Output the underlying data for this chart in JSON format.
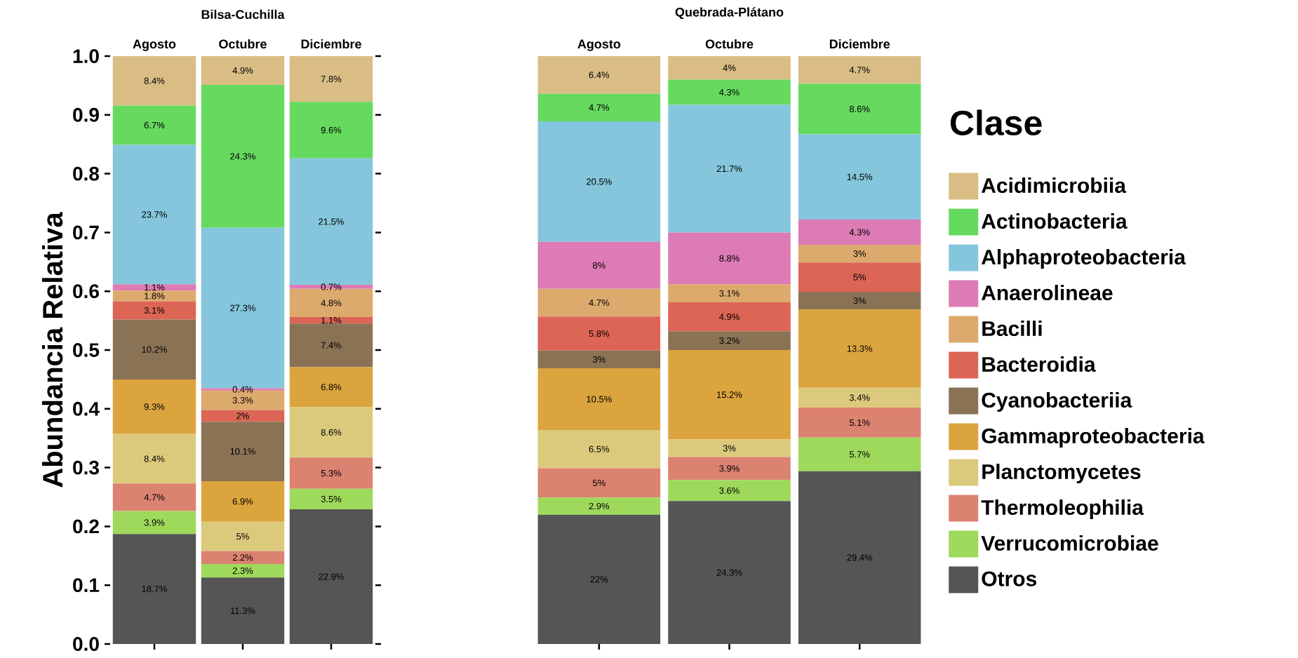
{
  "chart_data": [
    {
      "type": "bar",
      "stacked": true,
      "title": "Bilsa-Cuchilla",
      "ylabel": "Abundancia Relativa",
      "categories": [
        "Agosto",
        "Octubre",
        "Diciembre"
      ],
      "ylim": [
        0,
        1
      ],
      "yticks": [
        {
          "value": 0,
          "label": "0.0"
        },
        0.1,
        0.2,
        0.3,
        0.4,
        0.5,
        0.6,
        0.7,
        0.8,
        0.9,
        {
          "value": 1,
          "label": "1.0"
        }
      ],
      "series": [
        {
          "color": "#555555",
          "values": [
            0.187,
            0.113,
            0.229
          ],
          "value_labels": [
            "18.7%",
            "11.3%",
            "22.9%"
          ]
        },
        {
          "color": "#9ed95b",
          "values": [
            0.039,
            0.023,
            0.035
          ],
          "value_labels": [
            "3.9%",
            "2.3%",
            "3.5%"
          ]
        },
        {
          "color": "#dc8270",
          "values": [
            0.047,
            0.022,
            0.053
          ],
          "value_labels": [
            "4.7%",
            "2.2%",
            "5.3%"
          ]
        },
        {
          "color": "#dcca7c",
          "values": [
            0.084,
            0.05,
            0.086
          ],
          "value_labels": [
            "8.4%",
            "5%",
            "8.6%"
          ]
        },
        {
          "color": "#dca43e",
          "values": [
            0.093,
            0.069,
            0.068
          ],
          "value_labels": [
            "9.3%",
            "6.9%",
            "6.8%"
          ]
        },
        {
          "color": "#8a7355",
          "values": [
            0.102,
            0.101,
            0.074
          ],
          "value_labels": [
            "10.2%",
            "10.1%",
            "7.4%"
          ]
        },
        {
          "color": "#dc6555",
          "values": [
            0.031,
            0.02,
            0.011
          ],
          "value_labels": [
            "3.1%",
            "2%",
            "1.1%"
          ]
        },
        {
          "color": "#dcaa6c",
          "values": [
            0.018,
            0.033,
            0.048
          ],
          "value_labels": [
            "1.8%",
            "3.3%",
            "4.8%"
          ]
        },
        {
          "color": "#dc7bb4",
          "values": [
            0.011,
            0.004,
            0.007
          ],
          "value_labels": [
            "1.1%",
            "0.4%",
            "0.7%"
          ]
        },
        {
          "color": "#85c6dc",
          "values": [
            0.237,
            0.273,
            0.215
          ],
          "value_labels": [
            "23.7%",
            "27.3%",
            "21.5%"
          ]
        },
        {
          "color": "#66d95f",
          "values": [
            0.067,
            0.243,
            0.096
          ],
          "value_labels": [
            "6.7%",
            "24.3%",
            "9.6%"
          ]
        },
        {
          "color": "#d9bd85",
          "values": [
            0.084,
            0.049,
            0.078
          ],
          "value_labels": [
            "8.4%",
            "4.9%",
            "7.8%"
          ]
        }
      ]
    },
    {
      "type": "bar",
      "stacked": true,
      "title": "Quebrada-Plátano",
      "categories": [
        "Agosto",
        "Octubre",
        "Diciembre"
      ],
      "ylim": [
        0,
        1
      ],
      "tick_labels": "x",
      "legend": "right",
      "legend_title": "Clase",
      "series": [
        {
          "name": "Otros",
          "color": "#555555",
          "values": [
            0.22,
            0.243,
            0.294
          ],
          "value_labels": [
            "22%",
            "24.3%",
            "29.4%"
          ]
        },
        {
          "name": "Verrucomicrobiae",
          "color": "#9ed95b",
          "values": [
            0.029,
            0.036,
            0.057
          ],
          "value_labels": [
            "2.9%",
            "3.6%",
            "5.7%"
          ]
        },
        {
          "name": "Thermoleophilia",
          "color": "#dc8270",
          "values": [
            0.05,
            0.039,
            0.051
          ],
          "value_labels": [
            "5%",
            "3.9%",
            "5.1%"
          ]
        },
        {
          "name": "Planctomycetes",
          "color": "#dcca7c",
          "values": [
            0.065,
            0.03,
            0.034
          ],
          "value_labels": [
            "6.5%",
            "3%",
            "3.4%"
          ]
        },
        {
          "name": "Gammaproteobacteria",
          "color": "#dca43e",
          "values": [
            0.105,
            0.152,
            0.133
          ],
          "value_labels": [
            "10.5%",
            "15.2%",
            "13.3%"
          ]
        },
        {
          "name": "Cyanobacteriia",
          "color": "#8a7355",
          "values": [
            0.03,
            0.032,
            0.03
          ],
          "value_labels": [
            "3%",
            "3.2%",
            "3%"
          ]
        },
        {
          "name": "Bacteroidia",
          "color": "#dc6555",
          "values": [
            0.058,
            0.049,
            0.05
          ],
          "value_labels": [
            "5.8%",
            "4.9%",
            "5%"
          ]
        },
        {
          "name": "Bacilli",
          "color": "#dcaa6c",
          "values": [
            0.047,
            0.031,
            0.03
          ],
          "value_labels": [
            "4.7%",
            "3.1%",
            "3%"
          ]
        },
        {
          "name": "Anaerolineae",
          "color": "#dc7bb4",
          "values": [
            0.08,
            0.088,
            0.043
          ],
          "value_labels": [
            "8%",
            "8.8%",
            "4.3%"
          ]
        },
        {
          "name": "Alphaproteobacteria",
          "color": "#85c6dc",
          "values": [
            0.205,
            0.217,
            0.145
          ],
          "value_labels": [
            "20.5%",
            "21.7%",
            "14.5%"
          ]
        },
        {
          "name": "Actinobacteria",
          "color": "#66d95f",
          "values": [
            0.047,
            0.043,
            0.086
          ],
          "value_labels": [
            "4.7%",
            "4.3%",
            "8.6%"
          ]
        },
        {
          "name": "Acidimicrobiia",
          "color": "#d9bd85",
          "values": [
            0.064,
            0.04,
            0.047
          ],
          "value_labels": [
            "6.4%",
            "4%",
            "4.7%"
          ]
        }
      ]
    }
  ]
}
